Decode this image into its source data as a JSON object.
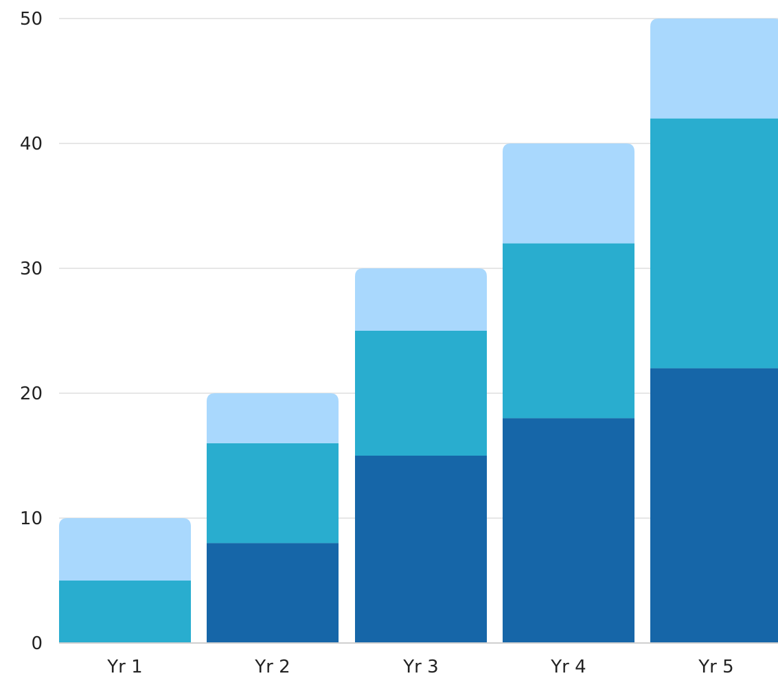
{
  "chart_data": {
    "type": "bar",
    "stacked": true,
    "categories": [
      "Yr 1",
      "Yr 2",
      "Yr 3",
      "Yr 4",
      "Yr 5"
    ],
    "series": [
      {
        "color": "#1666a8",
        "values": [
          0,
          8,
          15,
          18,
          22
        ]
      },
      {
        "color": "#29adcf",
        "values": [
          5,
          8,
          10,
          14,
          20
        ]
      },
      {
        "color": "#a9d8fd",
        "values": [
          5,
          4,
          5,
          8,
          8
        ]
      }
    ],
    "y_ticks": [
      0,
      10,
      20,
      30,
      40,
      50
    ],
    "ylim": [
      0,
      50
    ],
    "grid": true,
    "title": "",
    "xlabel": "",
    "ylabel": ""
  }
}
